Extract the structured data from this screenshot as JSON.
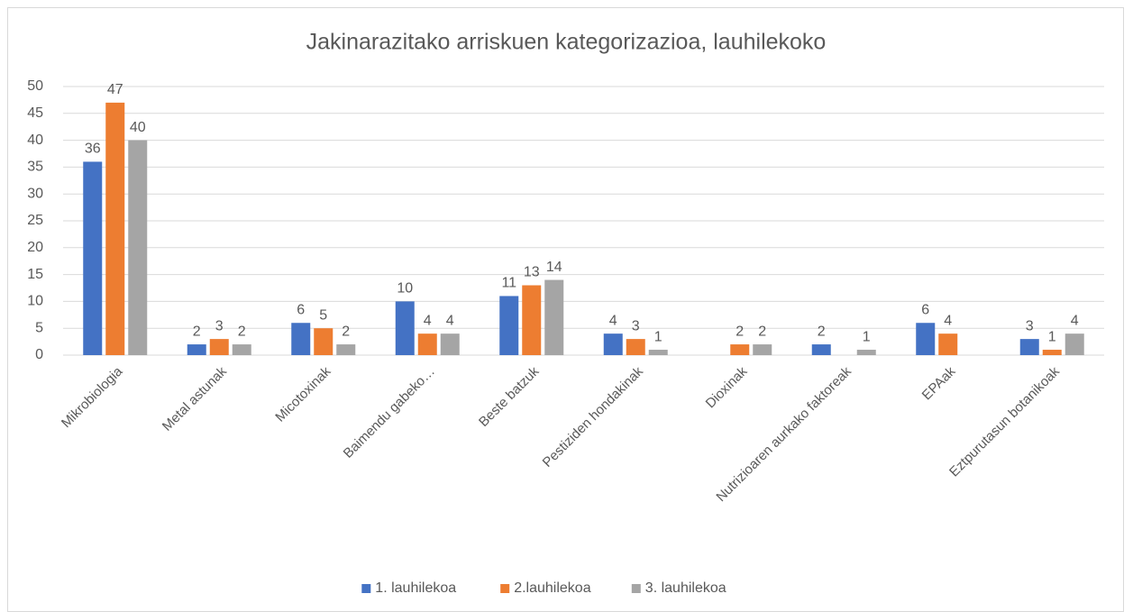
{
  "chart_data": {
    "type": "bar",
    "title": "Jakinarazitako arriskuen kategorizazioa, lauhilekoko",
    "categories": [
      "Mikrobiologia",
      "Metal astunak",
      "Micotoxinak",
      "Baimendu gabeko…",
      "Beste batzuk",
      "Pestiziden hondakinak",
      "Dioxinak",
      "Nutrizioaren aurkako faktoreak",
      "EPAak",
      "Eztpurutasun botanikoak"
    ],
    "series": [
      {
        "name": "1. lauhilekoa",
        "color": "#4472c4",
        "values": [
          36,
          2,
          6,
          10,
          11,
          4,
          null,
          2,
          6,
          3
        ]
      },
      {
        "name": "2.lauhilekoa",
        "color": "#ed7d31",
        "values": [
          47,
          3,
          5,
          4,
          13,
          3,
          2,
          null,
          4,
          1
        ]
      },
      {
        "name": "3. lauhilekoa",
        "color": "#a5a5a5",
        "values": [
          40,
          2,
          2,
          4,
          14,
          1,
          2,
          1,
          null,
          4
        ]
      }
    ],
    "ylim": [
      0,
      50
    ],
    "yticks": [
      0,
      5,
      10,
      15,
      20,
      25,
      30,
      35,
      40,
      45,
      50
    ],
    "grid": true,
    "legend": "bottom"
  }
}
